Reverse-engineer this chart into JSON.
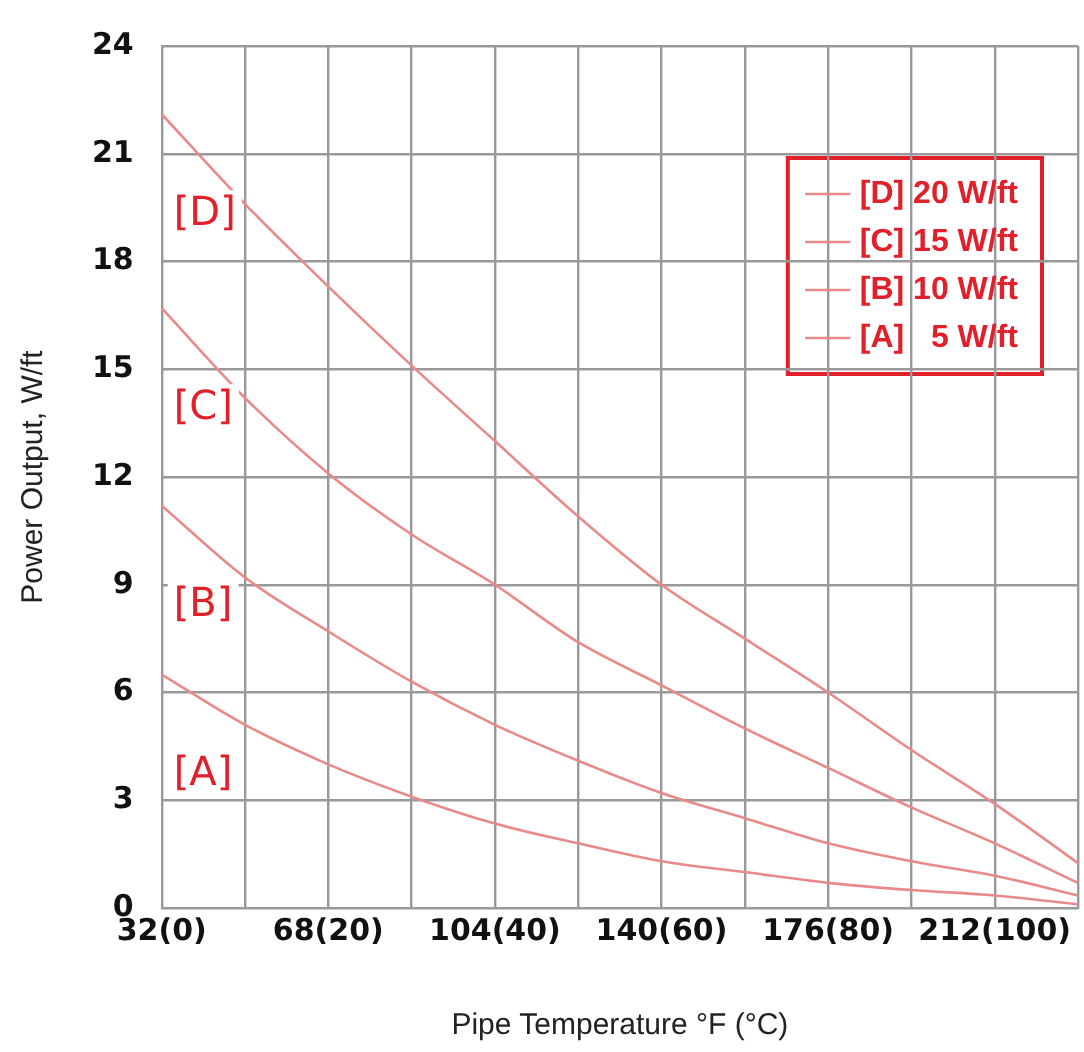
{
  "chart_data": {
    "type": "line",
    "xlabel": "Pipe Temperature °F (°C)",
    "ylabel": "Power Output, W/ft",
    "categories": [
      "32(0)",
      null,
      "68(20)",
      null,
      "104(40)",
      null,
      "140(60)",
      null,
      "176(80)",
      null,
      "212(100)",
      null
    ],
    "ylim": [
      0,
      24
    ],
    "yticks": [
      0,
      3,
      6,
      9,
      12,
      15,
      18,
      21,
      24
    ],
    "grid": true,
    "legend": "top right",
    "marker": "none",
    "line_style": "solid",
    "series": [
      {
        "name": "[D] 20 W/ft",
        "color": "#e88a8a",
        "values": [
          22.1,
          19.6,
          17.3,
          15.1,
          13.0,
          10.9,
          9.0,
          7.5,
          6.0,
          4.4,
          2.9,
          1.25
        ]
      },
      {
        "name": "[C] 15 W/ft",
        "color": "#e88a8a",
        "values": [
          16.7,
          14.2,
          12.1,
          10.4,
          9.0,
          7.4,
          6.2,
          5.0,
          3.9,
          2.8,
          1.8,
          0.7
        ]
      },
      {
        "name": "[B] 10 W/ft",
        "color": "#e88a8a",
        "values": [
          11.2,
          9.2,
          7.7,
          6.3,
          5.1,
          4.1,
          3.2,
          2.5,
          1.8,
          1.3,
          0.9,
          0.35
        ]
      },
      {
        "name": "[A]   5 W/ft",
        "color": "#e88a8a",
        "values": [
          6.5,
          5.1,
          4.0,
          3.1,
          2.35,
          1.8,
          1.3,
          1.0,
          0.7,
          0.5,
          0.35,
          0.1
        ]
      }
    ],
    "annotations": [
      "[D]",
      "[C]",
      "[B]",
      "[A]"
    ]
  }
}
